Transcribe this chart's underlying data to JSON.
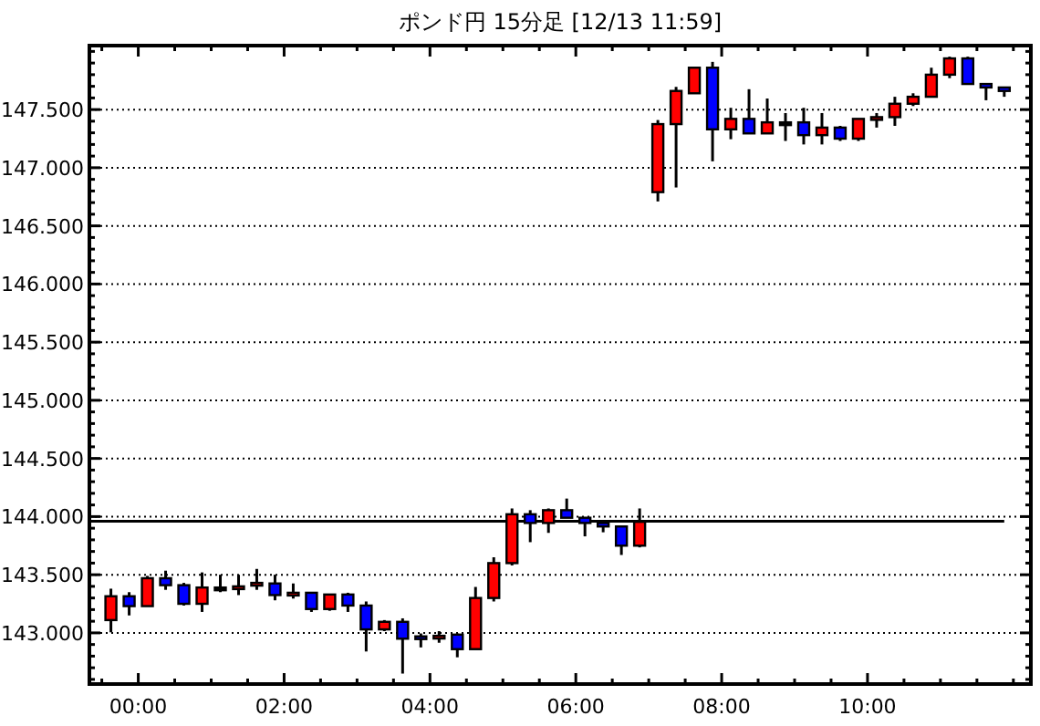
{
  "chart_data": {
    "type": "candlestick",
    "title": "ポンド円 15分足 [12/13 11:59]",
    "x": [
      -0.375,
      -0.125,
      0.125,
      0.375,
      0.625,
      0.875,
      1.125,
      1.375,
      1.625,
      1.875,
      2.125,
      2.375,
      2.625,
      2.875,
      3.125,
      3.375,
      3.625,
      3.875,
      4.125,
      4.375,
      4.625,
      4.875,
      5.125,
      5.375,
      5.625,
      5.875,
      6.125,
      6.375,
      6.625,
      6.875,
      7.125,
      7.375,
      7.625,
      7.875,
      8.125,
      8.375,
      8.625,
      8.875,
      9.125,
      9.375,
      9.625,
      9.875,
      10.125,
      10.375,
      10.625,
      10.875,
      11.125,
      11.375,
      11.625,
      11.875
    ],
    "ohlc": [
      [
        143.11,
        143.38,
        143.005,
        143.315
      ],
      [
        143.315,
        143.35,
        143.15,
        143.23
      ],
      [
        143.23,
        143.49,
        143.23,
        143.47
      ],
      [
        143.47,
        143.535,
        143.37,
        143.41
      ],
      [
        143.41,
        143.43,
        143.235,
        143.25
      ],
      [
        143.25,
        143.52,
        143.18,
        143.39
      ],
      [
        143.39,
        143.5,
        143.35,
        143.39
      ],
      [
        143.39,
        143.5,
        143.325,
        143.4
      ],
      [
        143.41,
        143.55,
        143.37,
        143.43
      ],
      [
        143.425,
        143.5,
        143.28,
        143.325
      ],
      [
        143.33,
        143.425,
        143.295,
        143.345
      ],
      [
        143.345,
        143.345,
        143.18,
        143.205
      ],
      [
        143.205,
        143.33,
        143.19,
        143.33
      ],
      [
        143.33,
        143.345,
        143.18,
        143.235
      ],
      [
        143.235,
        143.27,
        142.84,
        143.03
      ],
      [
        143.03,
        143.11,
        143.015,
        143.095
      ],
      [
        143.095,
        143.125,
        142.65,
        142.95
      ],
      [
        142.97,
        142.995,
        142.875,
        142.95
      ],
      [
        142.955,
        143.015,
        142.915,
        142.975
      ],
      [
        142.985,
        142.995,
        142.79,
        142.86
      ],
      [
        142.86,
        143.395,
        142.86,
        143.3
      ],
      [
        143.3,
        143.65,
        143.27,
        143.6
      ],
      [
        143.6,
        144.07,
        143.58,
        144.02
      ],
      [
        144.02,
        144.055,
        143.78,
        143.945
      ],
      [
        143.945,
        144.07,
        143.86,
        144.055
      ],
      [
        144.055,
        144.155,
        143.99,
        143.99
      ],
      [
        143.99,
        143.99,
        143.83,
        143.945
      ],
      [
        143.945,
        143.96,
        143.865,
        143.915
      ],
      [
        143.915,
        143.915,
        143.67,
        143.75
      ],
      [
        143.75,
        144.07,
        143.735,
        143.955
      ],
      [
        146.79,
        147.41,
        146.71,
        147.375
      ],
      [
        147.375,
        147.695,
        146.83,
        147.66
      ],
      [
        147.64,
        147.86,
        147.64,
        147.86
      ],
      [
        147.86,
        147.91,
        147.055,
        147.33
      ],
      [
        147.33,
        147.515,
        147.245,
        147.42
      ],
      [
        147.42,
        147.675,
        147.295,
        147.295
      ],
      [
        147.295,
        147.595,
        147.295,
        147.39
      ],
      [
        147.39,
        147.47,
        147.23,
        147.39
      ],
      [
        147.39,
        147.515,
        147.2,
        147.28
      ],
      [
        147.28,
        147.47,
        147.2,
        147.345
      ],
      [
        147.345,
        147.36,
        147.23,
        147.25
      ],
      [
        147.25,
        147.42,
        147.23,
        147.42
      ],
      [
        147.42,
        147.47,
        147.345,
        147.435
      ],
      [
        147.435,
        147.61,
        147.36,
        147.55
      ],
      [
        147.55,
        147.64,
        147.53,
        147.61
      ],
      [
        147.61,
        147.86,
        147.61,
        147.8
      ],
      [
        147.8,
        147.955,
        147.77,
        147.94
      ],
      [
        147.94,
        147.955,
        147.72,
        147.72
      ],
      [
        147.72,
        147.72,
        147.58,
        147.69
      ],
      [
        147.69,
        147.69,
        147.61,
        147.66
      ]
    ],
    "colors": [
      "#ff0000",
      "#0000ff",
      "#ff0000",
      "#0000ff",
      "#0000ff",
      "#ff0000",
      "#000000",
      "#ff0000",
      "#ff0000",
      "#0000ff",
      "#ff0000",
      "#0000ff",
      "#ff0000",
      "#0000ff",
      "#0000ff",
      "#ff0000",
      "#0000ff",
      "#0000ff",
      "#ff0000",
      "#0000ff",
      "#ff0000",
      "#ff0000",
      "#ff0000",
      "#0000ff",
      "#ff0000",
      "#0000ff",
      "#0000ff",
      "#0000ff",
      "#0000ff",
      "#ff0000",
      "#ff0000",
      "#ff0000",
      "#ff0000",
      "#0000ff",
      "#ff0000",
      "#0000ff",
      "#ff0000",
      "#000000",
      "#0000ff",
      "#ff0000",
      "#0000ff",
      "#ff0000",
      "#ff0000",
      "#ff0000",
      "#ff0000",
      "#ff0000",
      "#ff0000",
      "#0000ff",
      "#0000ff",
      "#0000ff"
    ],
    "xlim": [
      -0.67,
      12.24
    ],
    "xticks": [
      {
        "value": -0.5,
        "label": null
      },
      {
        "value": 0,
        "label": "00:00"
      },
      {
        "value": 0.5,
        "label": null
      },
      {
        "value": 1,
        "label": null
      },
      {
        "value": 1.5,
        "label": null
      },
      {
        "value": 2,
        "label": "02:00"
      },
      {
        "value": 2.5,
        "label": null
      },
      {
        "value": 3,
        "label": null
      },
      {
        "value": 3.5,
        "label": null
      },
      {
        "value": 4,
        "label": "04:00"
      },
      {
        "value": 4.5,
        "label": null
      },
      {
        "value": 5,
        "label": null
      },
      {
        "value": 5.5,
        "label": null
      },
      {
        "value": 6,
        "label": "06:00"
      },
      {
        "value": 6.5,
        "label": null
      },
      {
        "value": 7,
        "label": null
      },
      {
        "value": 7.5,
        "label": null
      },
      {
        "value": 8,
        "label": "08:00"
      },
      {
        "value": 8.5,
        "label": null
      },
      {
        "value": 9,
        "label": null
      },
      {
        "value": 9.5,
        "label": null
      },
      {
        "value": 10,
        "label": "10:00"
      },
      {
        "value": 10.5,
        "label": null
      },
      {
        "value": 11,
        "label": null
      },
      {
        "value": 11.5,
        "label": null
      },
      {
        "value": 12,
        "label": null
      }
    ],
    "ylim": [
      142.56,
      148.05
    ],
    "yticks": [
      {
        "value": 142.6,
        "label": null
      },
      {
        "value": 142.7,
        "label": null
      },
      {
        "value": 142.8,
        "label": null
      },
      {
        "value": 142.9,
        "label": null
      },
      {
        "value": 143.0,
        "label": "143.000"
      },
      {
        "value": 143.1,
        "label": null
      },
      {
        "value": 143.2,
        "label": null
      },
      {
        "value": 143.3,
        "label": null
      },
      {
        "value": 143.4,
        "label": null
      },
      {
        "value": 143.5,
        "label": "143.500"
      },
      {
        "value": 143.6,
        "label": null
      },
      {
        "value": 143.7,
        "label": null
      },
      {
        "value": 143.8,
        "label": null
      },
      {
        "value": 143.9,
        "label": null
      },
      {
        "value": 144.0,
        "label": "144.000"
      },
      {
        "value": 144.1,
        "label": null
      },
      {
        "value": 144.2,
        "label": null
      },
      {
        "value": 144.3,
        "label": null
      },
      {
        "value": 144.4,
        "label": null
      },
      {
        "value": 144.5,
        "label": "144.500"
      },
      {
        "value": 144.6,
        "label": null
      },
      {
        "value": 144.7,
        "label": null
      },
      {
        "value": 144.8,
        "label": null
      },
      {
        "value": 144.9,
        "label": null
      },
      {
        "value": 145.0,
        "label": "145.000"
      },
      {
        "value": 145.1,
        "label": null
      },
      {
        "value": 145.2,
        "label": null
      },
      {
        "value": 145.3,
        "label": null
      },
      {
        "value": 145.4,
        "label": null
      },
      {
        "value": 145.5,
        "label": "145.500"
      },
      {
        "value": 145.6,
        "label": null
      },
      {
        "value": 145.7,
        "label": null
      },
      {
        "value": 145.8,
        "label": null
      },
      {
        "value": 145.9,
        "label": null
      },
      {
        "value": 146.0,
        "label": "146.000"
      },
      {
        "value": 146.1,
        "label": null
      },
      {
        "value": 146.2,
        "label": null
      },
      {
        "value": 146.3,
        "label": null
      },
      {
        "value": 146.4,
        "label": null
      },
      {
        "value": 146.5,
        "label": "146.500"
      },
      {
        "value": 146.6,
        "label": null
      },
      {
        "value": 146.7,
        "label": null
      },
      {
        "value": 146.8,
        "label": null
      },
      {
        "value": 146.9,
        "label": null
      },
      {
        "value": 147.0,
        "label": "147.000"
      },
      {
        "value": 147.1,
        "label": null
      },
      {
        "value": 147.2,
        "label": null
      },
      {
        "value": 147.3,
        "label": null
      },
      {
        "value": 147.4,
        "label": null
      },
      {
        "value": 147.5,
        "label": "147.500"
      },
      {
        "value": 147.6,
        "label": null
      },
      {
        "value": 147.7,
        "label": null
      },
      {
        "value": 147.8,
        "label": null
      },
      {
        "value": 147.9,
        "label": null
      },
      {
        "value": 148.0,
        "label": null
      }
    ],
    "grid": "y",
    "ref_lines": [
      {
        "axis": "y",
        "value": 143.96,
        "color": "#000000",
        "line_style": "solid"
      }
    ]
  }
}
